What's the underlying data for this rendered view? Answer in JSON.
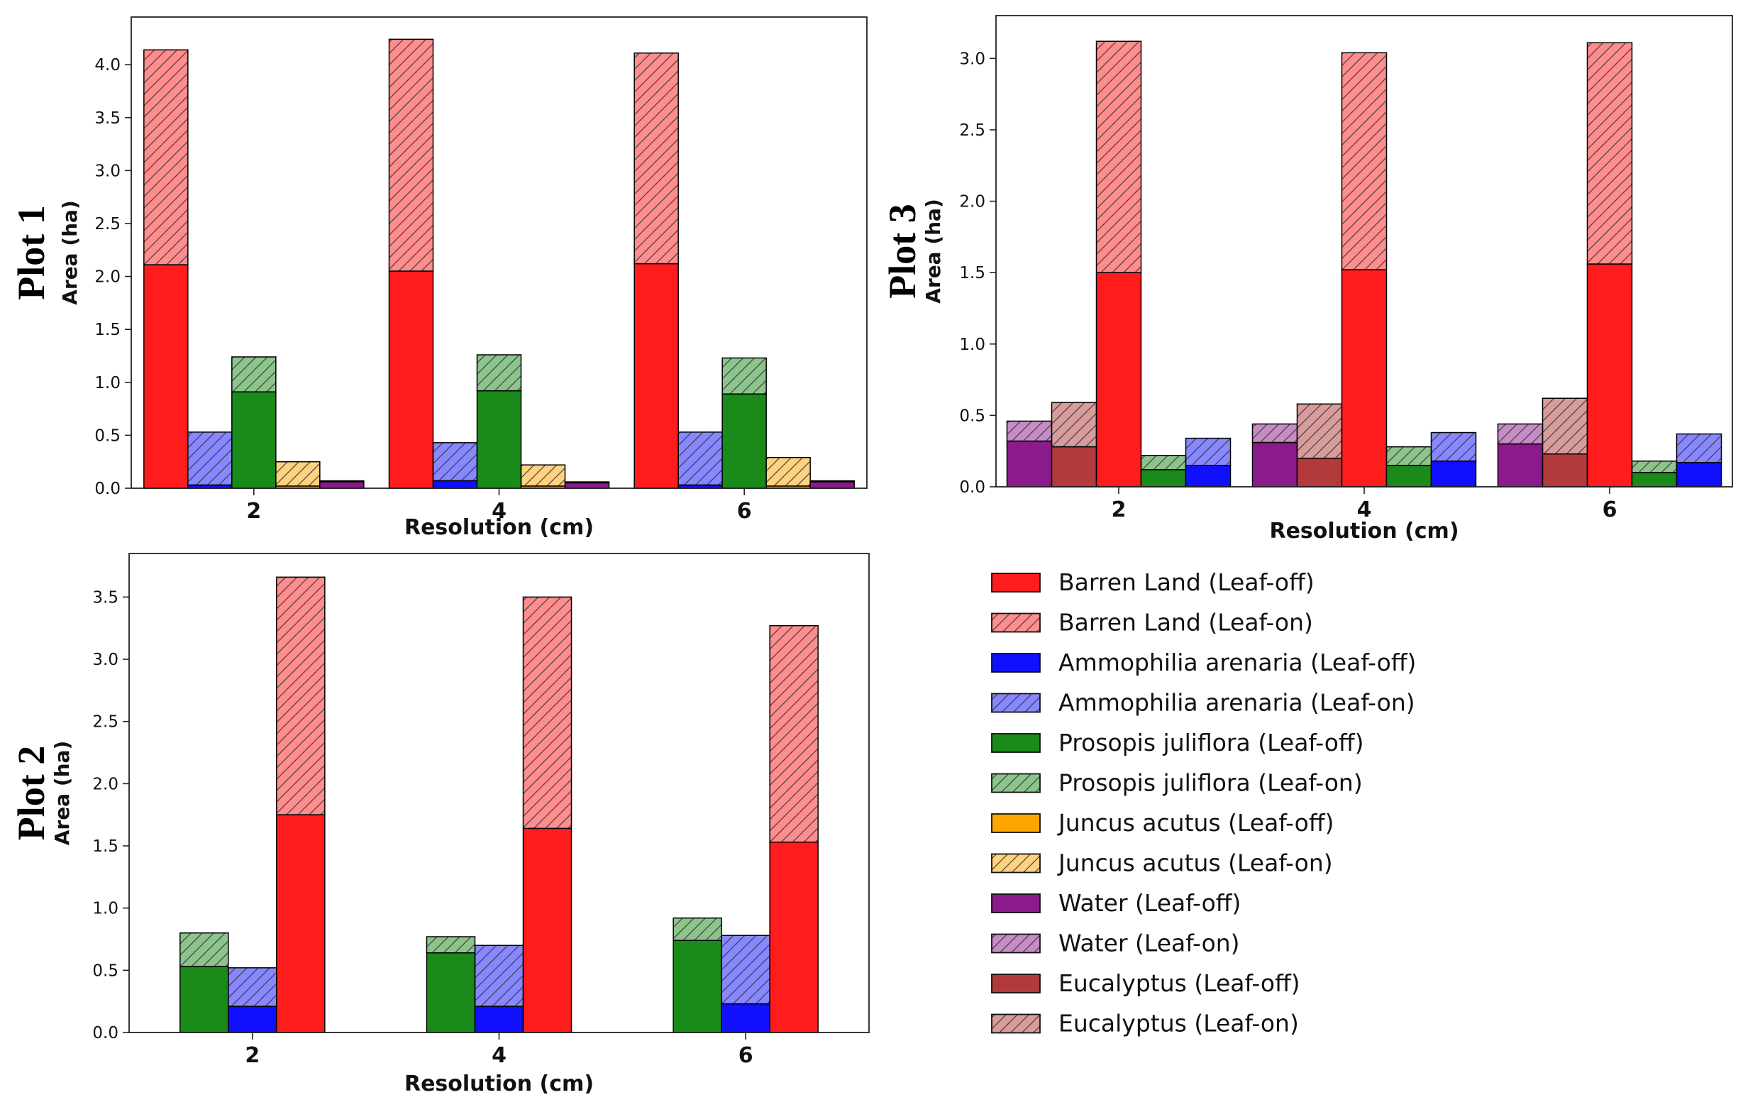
{
  "chart_data": [
    {
      "type": "bar",
      "plot_label": "Plot 1",
      "xlabel": "Resolution (cm)",
      "ylabel": "Area (ha)",
      "categories": [
        "2",
        "4",
        "6"
      ],
      "ylim": [
        0,
        4.45
      ],
      "yticks": [
        "0.0",
        "0.5",
        "1.0",
        "1.5",
        "2.0",
        "2.5",
        "3.0",
        "3.5",
        "4.0"
      ],
      "grid": false,
      "bar_order": [
        "Barren Land",
        "Ammophilia arenaria",
        "Prosopis juliflora",
        "Juncus acutus",
        "Water"
      ],
      "series": [
        {
          "name": "Barren Land",
          "leaf_off": [
            2.11,
            2.05,
            2.12
          ],
          "leaf_on": [
            4.14,
            4.24,
            4.11
          ]
        },
        {
          "name": "Ammophilia arenaria",
          "leaf_off": [
            0.03,
            0.07,
            0.03
          ],
          "leaf_on": [
            0.53,
            0.43,
            0.53
          ]
        },
        {
          "name": "Prosopis juliflora",
          "leaf_off": [
            0.91,
            0.92,
            0.89
          ],
          "leaf_on": [
            1.24,
            1.26,
            1.23
          ]
        },
        {
          "name": "Juncus acutus",
          "leaf_off": [
            0.02,
            0.02,
            0.02
          ],
          "leaf_on": [
            0.25,
            0.22,
            0.29
          ]
        },
        {
          "name": "Water",
          "leaf_off": [
            0.06,
            0.05,
            0.06
          ],
          "leaf_on": [
            0.07,
            0.06,
            0.07
          ]
        }
      ]
    },
    {
      "type": "bar",
      "plot_label": "Plot 3",
      "xlabel": "Resolution (cm)",
      "ylabel": "Area (ha)",
      "categories": [
        "2",
        "4",
        "6"
      ],
      "ylim": [
        0,
        3.3
      ],
      "yticks": [
        "0.0",
        "0.5",
        "1.0",
        "1.5",
        "2.0",
        "2.5",
        "3.0"
      ],
      "grid": false,
      "bar_order": [
        "Water",
        "Eucalyptus",
        "Barren Land",
        "Prosopis juliflora",
        "Ammophilia arenaria"
      ],
      "series": [
        {
          "name": "Water",
          "leaf_off": [
            0.32,
            0.31,
            0.3
          ],
          "leaf_on": [
            0.46,
            0.44,
            0.44
          ]
        },
        {
          "name": "Eucalyptus",
          "leaf_off": [
            0.28,
            0.2,
            0.23
          ],
          "leaf_on": [
            0.59,
            0.58,
            0.62
          ]
        },
        {
          "name": "Barren Land",
          "leaf_off": [
            1.5,
            1.52,
            1.56
          ],
          "leaf_on": [
            3.12,
            3.04,
            3.11
          ]
        },
        {
          "name": "Prosopis juliflora",
          "leaf_off": [
            0.12,
            0.15,
            0.1
          ],
          "leaf_on": [
            0.22,
            0.28,
            0.18
          ]
        },
        {
          "name": "Ammophilia arenaria",
          "leaf_off": [
            0.15,
            0.18,
            0.17
          ],
          "leaf_on": [
            0.34,
            0.38,
            0.37
          ]
        }
      ]
    },
    {
      "type": "bar",
      "plot_label": "Plot 2",
      "xlabel": "Resolution (cm)",
      "ylabel": "Area (ha)",
      "categories": [
        "2",
        "4",
        "6"
      ],
      "ylim": [
        0,
        3.85
      ],
      "yticks": [
        "0.0",
        "0.5",
        "1.0",
        "1.5",
        "2.0",
        "2.5",
        "3.0",
        "3.5"
      ],
      "grid": false,
      "bar_order": [
        "Prosopis juliflora",
        "Ammophilia arenaria",
        "Barren Land"
      ],
      "series": [
        {
          "name": "Prosopis juliflora",
          "leaf_off": [
            0.53,
            0.64,
            0.74
          ],
          "leaf_on": [
            0.8,
            0.77,
            0.92
          ]
        },
        {
          "name": "Ammophilia arenaria",
          "leaf_off": [
            0.21,
            0.21,
            0.23
          ],
          "leaf_on": [
            0.52,
            0.7,
            0.78
          ]
        },
        {
          "name": "Barren Land",
          "leaf_off": [
            1.75,
            1.64,
            1.53
          ],
          "leaf_on": [
            3.66,
            3.5,
            3.27
          ]
        }
      ]
    }
  ],
  "legend": {
    "placement": "bottom-right",
    "entries": [
      {
        "label": "Barren Land (Leaf-off)",
        "class": "Barren Land",
        "hatched": false
      },
      {
        "label": "Barren Land (Leaf-on)",
        "class": "Barren Land",
        "hatched": true
      },
      {
        "label": "Ammophilia arenaria (Leaf-off)",
        "class": "Ammophilia arenaria",
        "hatched": false
      },
      {
        "label": "Ammophilia arenaria (Leaf-on)",
        "class": "Ammophilia arenaria",
        "hatched": true
      },
      {
        "label": "Prosopis juliflora (Leaf-off)",
        "class": "Prosopis juliflora",
        "hatched": false
      },
      {
        "label": "Prosopis juliflora (Leaf-on)",
        "class": "Prosopis juliflora",
        "hatched": true
      },
      {
        "label": "Juncus acutus (Leaf-off)",
        "class": "Juncus acutus",
        "hatched": false
      },
      {
        "label": "Juncus acutus (Leaf-on)",
        "class": "Juncus acutus",
        "hatched": true
      },
      {
        "label": "Water (Leaf-off)",
        "class": "Water",
        "hatched": false
      },
      {
        "label": "Water (Leaf-on)",
        "class": "Water",
        "hatched": true
      },
      {
        "label": "Eucalyptus (Leaf-off)",
        "class": "Eucalyptus",
        "hatched": false
      },
      {
        "label": "Eucalyptus (Leaf-on)",
        "class": "Eucalyptus",
        "hatched": true
      }
    ]
  },
  "colors": {
    "Barren Land": "#ff1c1c",
    "Ammophilia arenaria": "#1010ff",
    "Prosopis juliflora": "#1a8a1a",
    "Juncus acutus": "#ffa500",
    "Water": "#8b1a8b",
    "Eucalyptus": "#b23a3a"
  }
}
